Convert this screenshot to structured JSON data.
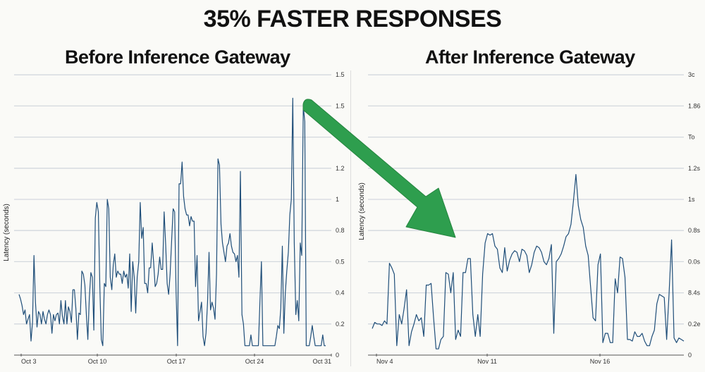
{
  "title": "35% FASTER RESPONSES",
  "colors": {
    "line": "#1f4e79",
    "grid": "#d3d8de",
    "arrow": "#2e9e4e",
    "axis": "#555555"
  },
  "chart_data": [
    {
      "type": "line",
      "title": "Before Inference Gateway",
      "xlabel": "",
      "ylabel": "Latency (seconds)",
      "y_axis_side": "right",
      "y_ticks": [
        "0",
        "0.2",
        "0.4",
        "0.5",
        "0.8",
        "1",
        "1.2",
        "",
        "1.5",
        "1.5"
      ],
      "x_ticks": [
        "Oct 3",
        "Oct 10",
        "Oct 17",
        "Oct 24",
        "Oct 31"
      ],
      "grid": true,
      "unit_note": "values expressed in gridline levels (0=baseline, 9=top gridline)",
      "x_range": [
        27,
        462
      ],
      "values": [
        1.95,
        1.8,
        1.6,
        1.3,
        1.45,
        1.0,
        1.15,
        1.3,
        0.45,
        1.05,
        3.2,
        1.7,
        0.9,
        1.4,
        1.3,
        1.0,
        1.4,
        1.15,
        1.0,
        1.3,
        1.45,
        1.3,
        0.7,
        1.3,
        1.1,
        1.3,
        1.35,
        1.0,
        1.75,
        1.25,
        1.0,
        1.75,
        1.0,
        1.55,
        1.4,
        1.05,
        2.1,
        2.1,
        1.5,
        0.5,
        1.35,
        1.3,
        2.7,
        2.6,
        2.25,
        1.3,
        0.5,
        1.85,
        2.65,
        2.5,
        0.8,
        4.4,
        4.9,
        4.6,
        2.2,
        0.5,
        0.3,
        2.3,
        2.2,
        5.0,
        4.7,
        2.5,
        2.1,
        2.9,
        3.25,
        2.5,
        2.7,
        2.6,
        2.6,
        2.3,
        2.7,
        2.5,
        2.6,
        2.15,
        3.25,
        1.4,
        3.0,
        2.5,
        1.35,
        2.5,
        3.0,
        4.9,
        3.75,
        4.1,
        2.3,
        2.3,
        2.0,
        2.8,
        2.8,
        3.6,
        2.95,
        2.2,
        2.3,
        2.6,
        3.15,
        2.75,
        2.75,
        4.6,
        3.55,
        2.3,
        1.95,
        2.6,
        3.65,
        4.7,
        4.6,
        2.0,
        0.3,
        5.5,
        5.5,
        6.2,
        5.1,
        4.7,
        4.5,
        4.5,
        4.15,
        4.45,
        4.3,
        4.3,
        2.2,
        3.2,
        1.1,
        1.4,
        1.7,
        0.6,
        0.3,
        0.7,
        1.7,
        3.3,
        1.45,
        1.7,
        1.5,
        1.15,
        2.6,
        6.3,
        6.1,
        4.2,
        3.6,
        3.3,
        3.0,
        3.5,
        3.6,
        3.9,
        3.5,
        3.3,
        3.25,
        3.0,
        3.2,
        2.5,
        5.9,
        1.3,
        1.0,
        0.3,
        0.3,
        0.3,
        0.3,
        0.65,
        0.3,
        0.3,
        0.3,
        0.3,
        0.3,
        1.65,
        3.0,
        0.3,
        0.3,
        0.3,
        0.3,
        0.3,
        0.3,
        0.3,
        0.3,
        0.3,
        0.6,
        0.95,
        0.85,
        1.5,
        3.5,
        0.7,
        2.0,
        2.7,
        3.3,
        4.5,
        5.0,
        8.25,
        3.6,
        1.3,
        1.75,
        1.1,
        3.6,
        3.2,
        8.0,
        7.5,
        0.3,
        0.3,
        0.3,
        0.6,
        0.95,
        0.6,
        0.3,
        0.3,
        0.3,
        0.3,
        0.3,
        0.65,
        0.3,
        0.3
      ]
    },
    {
      "type": "line",
      "title": "After Inference Gateway",
      "xlabel": "",
      "ylabel": "Latency (seconds)",
      "y_axis_side": "right",
      "y_ticks": [
        "0",
        "0.2e",
        "8.4s",
        "0.0s",
        "0.8s",
        "1s",
        "1.2s",
        "To",
        "1.86",
        "3c"
      ],
      "x_ticks": [
        "Nov 4",
        "Nov 11",
        "Nov 16"
      ],
      "grid": true,
      "unit_note": "values expressed in gridline levels (0=baseline, 9=top gridline)",
      "x_range": [
        528,
        970
      ],
      "values": [
        0.85,
        1.05,
        1.0,
        1.0,
        0.95,
        1.1,
        1.0,
        2.95,
        2.8,
        2.6,
        0.3,
        1.3,
        1.0,
        1.5,
        2.1,
        0.3,
        0.75,
        1.0,
        1.3,
        1.1,
        1.2,
        0.6,
        2.25,
        2.25,
        2.3,
        1.2,
        0.2,
        0.2,
        0.5,
        0.6,
        2.65,
        2.6,
        2.0,
        2.65,
        0.5,
        0.8,
        0.6,
        2.65,
        2.65,
        3.1,
        3.1,
        1.3,
        0.6,
        1.3,
        0.6,
        2.6,
        3.6,
        3.9,
        3.85,
        3.9,
        3.5,
        3.4,
        2.8,
        2.65,
        3.45,
        2.7,
        3.05,
        3.25,
        3.35,
        3.3,
        3.0,
        3.4,
        3.35,
        3.2,
        2.65,
        2.9,
        3.3,
        3.5,
        3.45,
        3.3,
        3.0,
        2.9,
        3.1,
        3.55,
        0.7,
        3.0,
        3.1,
        3.25,
        3.5,
        3.8,
        3.9,
        4.2,
        4.95,
        5.8,
        4.8,
        4.35,
        4.1,
        3.5,
        3.2,
        2.2,
        1.2,
        1.1,
        2.9,
        3.25,
        0.4,
        0.7,
        0.7,
        0.4,
        0.4,
        2.45,
        2.0,
        3.15,
        3.1,
        2.5,
        0.5,
        0.5,
        0.45,
        0.75,
        0.6,
        0.6,
        0.7,
        0.45,
        0.3,
        0.3,
        0.6,
        0.8,
        1.65,
        1.95,
        1.9,
        1.85,
        0.5,
        2.0,
        3.7,
        0.55,
        0.4,
        0.55,
        0.5,
        0.45
      ]
    }
  ],
  "left_chart": {
    "title": "Before Inference Gateway",
    "ylabel": "Latency (seconds)",
    "y_ticks": [
      "0",
      "0.2",
      "0.4",
      "0.5",
      "0.8",
      "1",
      "1.2",
      "",
      "1.5",
      "1.5"
    ],
    "x_ticks": [
      {
        "label": "Oct 3",
        "x": 30
      },
      {
        "label": "Oct 10",
        "x": 138
      },
      {
        "label": "Oct 17",
        "x": 250
      },
      {
        "label": "Oct 24",
        "x": 361
      },
      {
        "label": "Oct 31",
        "x": 470
      }
    ]
  },
  "right_chart": {
    "title": "After Inference Gateway",
    "ylabel": "Latency (seconds)",
    "y_ticks": [
      "0",
      "0.2e",
      "8.4s",
      "0.0s",
      "0.8s",
      "1s",
      "1.2s",
      "To",
      "1.86",
      "3c"
    ],
    "x_ticks": [
      {
        "label": "Nov 4",
        "x": 534
      },
      {
        "label": "Nov 11",
        "x": 691
      },
      {
        "label": "Nov 16",
        "x": 851
      }
    ]
  }
}
